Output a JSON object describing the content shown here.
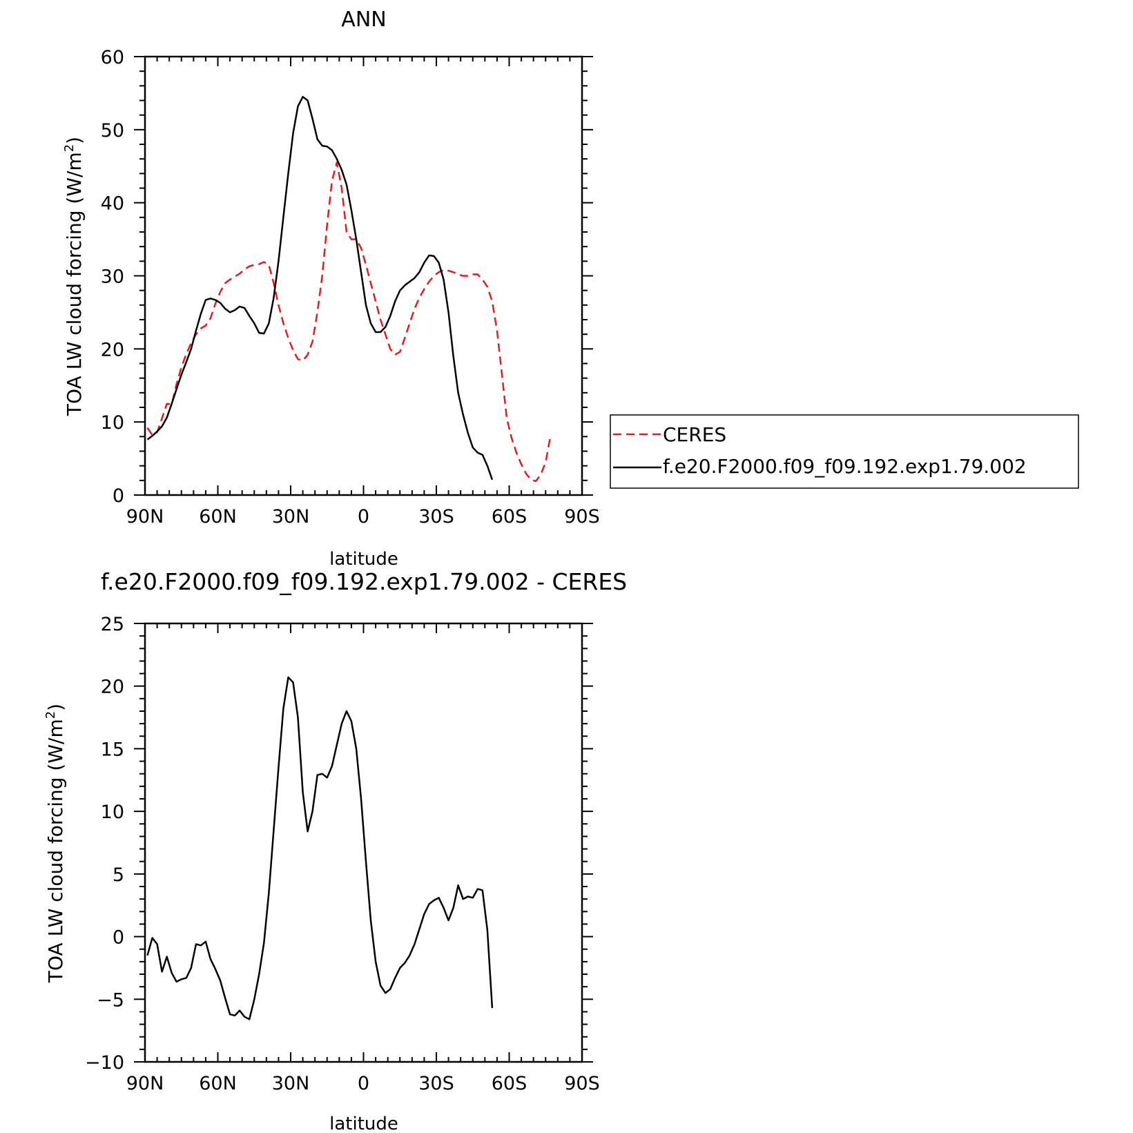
{
  "colors": {
    "ceres": "#e41a1c",
    "model": "#000000",
    "axis": "#000000"
  },
  "legend": {
    "placement": "right of top panel",
    "entries": [
      {
        "label": "CERES",
        "color": "#e41a1c",
        "style": "dashed"
      },
      {
        "label": "f.e20.F2000.f09_f09.192.exp1.79.002",
        "color": "#000000",
        "style": "solid"
      }
    ]
  },
  "chart_data": [
    {
      "type": "line",
      "title": "ANN",
      "xlabel": "latitude",
      "ylabel": "TOA LW cloud forcing (W/m²)",
      "ylabel_main": "TOA LW cloud forcing (W/m",
      "ylabel_sup": "2",
      "ylabel_end": ")",
      "xlim": [
        90,
        -90
      ],
      "ylim": [
        0,
        60
      ],
      "x_ticks": [
        90,
        60,
        30,
        0,
        -30,
        -60,
        -90
      ],
      "x_tick_labels": [
        "90N",
        "60N",
        "30N",
        "0",
        "30S",
        "60S",
        "90S"
      ],
      "y_ticks": [
        0,
        10,
        20,
        30,
        40,
        50,
        60
      ],
      "y_tick_labels": [
        "0",
        "10",
        "20",
        "30",
        "40",
        "50",
        "60"
      ],
      "grid": false,
      "series": [
        {
          "name": "CERES",
          "color": "#e41a1c",
          "style": "dashed",
          "points": [
            [
              89,
              9.2
            ],
            [
              87,
              8.2
            ],
            [
              85,
              8.6
            ],
            [
              83,
              10.5
            ],
            [
              81,
              12.5
            ],
            [
              79,
              12.4
            ],
            [
              77,
              15.2
            ],
            [
              75,
              17.5
            ],
            [
              73,
              19.3
            ],
            [
              71,
              20.8
            ],
            [
              69,
              22.0
            ],
            [
              67,
              22.8
            ],
            [
              65,
              23.2
            ],
            [
              63,
              24.2
            ],
            [
              61,
              26.2
            ],
            [
              59,
              27.8
            ],
            [
              57,
              29.0
            ],
            [
              55,
              29.5
            ],
            [
              53,
              29.9
            ],
            [
              51,
              30.3
            ],
            [
              49,
              30.9
            ],
            [
              47,
              31.3
            ],
            [
              45,
              31.5
            ],
            [
              43,
              31.6
            ],
            [
              41,
              31.9
            ],
            [
              39,
              31.5
            ],
            [
              37,
              29.0
            ],
            [
              35,
              26.0
            ],
            [
              33,
              23.5
            ],
            [
              31,
              21.5
            ],
            [
              29,
              19.8
            ],
            [
              27,
              18.6
            ],
            [
              25,
              18.4
            ],
            [
              23,
              19.2
            ],
            [
              21,
              21.0
            ],
            [
              19,
              25.0
            ],
            [
              17,
              30.0
            ],
            [
              15,
              37.0
            ],
            [
              13,
              43.0
            ],
            [
              11,
              45.5
            ],
            [
              9,
              42.0
            ],
            [
              7,
              36.0
            ],
            [
              5,
              35.0
            ],
            [
              3,
              35.0
            ],
            [
              1,
              33.8
            ],
            [
              -1,
              31.5
            ],
            [
              -3,
              29.0
            ],
            [
              -5,
              26.5
            ],
            [
              -7,
              24.0
            ],
            [
              -9,
              22.0
            ],
            [
              -11,
              20.0
            ],
            [
              -13,
              19.2
            ],
            [
              -15,
              19.6
            ],
            [
              -17,
              21.5
            ],
            [
              -19,
              23.5
            ],
            [
              -21,
              25.5
            ],
            [
              -23,
              27.0
            ],
            [
              -25,
              28.2
            ],
            [
              -27,
              29.2
            ],
            [
              -29,
              30.0
            ],
            [
              -31,
              30.5
            ],
            [
              -33,
              30.8
            ],
            [
              -35,
              30.7
            ],
            [
              -37,
              30.5
            ],
            [
              -39,
              30.2
            ],
            [
              -41,
              30.0
            ],
            [
              -43,
              30.0
            ],
            [
              -45,
              30.2
            ],
            [
              -47,
              30.2
            ],
            [
              -49,
              29.5
            ],
            [
              -51,
              28.5
            ],
            [
              -53,
              26.5
            ],
            [
              -55,
              22.5
            ],
            [
              -57,
              16.5
            ],
            [
              -59,
              10.5
            ],
            [
              -61,
              7.8
            ],
            [
              -63,
              5.8
            ],
            [
              -65,
              4.2
            ],
            [
              -67,
              2.9
            ],
            [
              -69,
              2.1
            ],
            [
              -71,
              1.9
            ],
            [
              -73,
              2.8
            ],
            [
              -75,
              4.5
            ],
            [
              -77,
              8.1
            ]
          ]
        },
        {
          "name": "f.e20.F2000.f09_f09.192.exp1.79.002",
          "color": "#000000",
          "style": "solid",
          "points": [
            [
              89,
              7.6
            ],
            [
              87,
              8.1
            ],
            [
              85,
              8.7
            ],
            [
              83,
              9.4
            ],
            [
              81,
              10.6
            ],
            [
              79,
              12.5
            ],
            [
              77,
              14.5
            ],
            [
              75,
              16.5
            ],
            [
              73,
              18.2
            ],
            [
              71,
              20.0
            ],
            [
              69,
              22.5
            ],
            [
              67,
              24.8
            ],
            [
              65,
              26.7
            ],
            [
              63,
              26.9
            ],
            [
              61,
              26.7
            ],
            [
              59,
              26.3
            ],
            [
              57,
              25.5
            ],
            [
              55,
              25.0
            ],
            [
              53,
              25.3
            ],
            [
              51,
              25.8
            ],
            [
              49,
              25.6
            ],
            [
              47,
              24.5
            ],
            [
              45,
              23.5
            ],
            [
              43,
              22.2
            ],
            [
              41,
              22.1
            ],
            [
              39,
              23.5
            ],
            [
              37,
              27.0
            ],
            [
              35,
              32.0
            ],
            [
              33,
              38.0
            ],
            [
              31,
              44.0
            ],
            [
              29,
              49.5
            ],
            [
              27,
              53.2
            ],
            [
              25,
              54.5
            ],
            [
              23,
              54.0
            ],
            [
              21,
              51.5
            ],
            [
              19,
              48.7
            ],
            [
              17,
              47.8
            ],
            [
              15,
              47.7
            ],
            [
              13,
              47.2
            ],
            [
              11,
              46.0
            ],
            [
              9,
              44.5
            ],
            [
              7,
              42.5
            ],
            [
              5,
              39.0
            ],
            [
              3,
              35.0
            ],
            [
              1,
              30.5
            ],
            [
              -1,
              26.0
            ],
            [
              -3,
              23.5
            ],
            [
              -5,
              22.3
            ],
            [
              -7,
              22.3
            ],
            [
              -9,
              23.0
            ],
            [
              -11,
              24.5
            ],
            [
              -13,
              26.5
            ],
            [
              -15,
              28.0
            ],
            [
              -17,
              28.7
            ],
            [
              -19,
              29.2
            ],
            [
              -21,
              29.7
            ],
            [
              -23,
              30.5
            ],
            [
              -25,
              31.8
            ],
            [
              -27,
              32.8
            ],
            [
              -29,
              32.7
            ],
            [
              -31,
              31.8
            ],
            [
              -33,
              29.5
            ],
            [
              -35,
              25.0
            ],
            [
              -37,
              19.0
            ],
            [
              -39,
              14.0
            ],
            [
              -41,
              11.0
            ],
            [
              -43,
              8.5
            ],
            [
              -45,
              6.5
            ],
            [
              -47,
              5.8
            ],
            [
              -49,
              5.5
            ],
            [
              -51,
              4.0
            ],
            [
              -53,
              2.1
            ]
          ]
        }
      ]
    },
    {
      "type": "line",
      "title": "f.e20.F2000.f09_f09.192.exp1.79.002 - CERES",
      "xlabel": "latitude",
      "ylabel": "TOA LW cloud forcing (W/m²)",
      "ylabel_main": "TOA LW cloud forcing (W/m",
      "ylabel_sup": "2",
      "ylabel_end": ")",
      "xlim": [
        90,
        -90
      ],
      "ylim": [
        -10,
        25
      ],
      "x_ticks": [
        90,
        60,
        30,
        0,
        -30,
        -60,
        -90
      ],
      "x_tick_labels": [
        "90N",
        "60N",
        "30N",
        "0",
        "30S",
        "60S",
        "90S"
      ],
      "y_ticks": [
        -10,
        -5,
        0,
        5,
        10,
        15,
        20,
        25
      ],
      "y_tick_labels": [
        "−10",
        "−5",
        "0",
        "5",
        "10",
        "15",
        "20",
        "25"
      ],
      "grid": false,
      "series": [
        {
          "color": "#000000",
          "style": "solid",
          "points": [
            [
              89,
              -1.5
            ],
            [
              87,
              -0.1
            ],
            [
              85,
              -0.6
            ],
            [
              83,
              -2.8
            ],
            [
              81,
              -1.6
            ],
            [
              79,
              -2.9
            ],
            [
              77,
              -3.6
            ],
            [
              75,
              -3.4
            ],
            [
              73,
              -3.3
            ],
            [
              71,
              -2.5
            ],
            [
              69,
              -0.6
            ],
            [
              67,
              -0.7
            ],
            [
              65,
              -0.4
            ],
            [
              63,
              -1.8
            ],
            [
              61,
              -2.6
            ],
            [
              59,
              -3.5
            ],
            [
              57,
              -4.9
            ],
            [
              55,
              -6.2
            ],
            [
              53,
              -6.3
            ],
            [
              51,
              -5.9
            ],
            [
              49,
              -6.4
            ],
            [
              47,
              -6.6
            ],
            [
              45,
              -5.0
            ],
            [
              43,
              -3.0
            ],
            [
              41,
              -0.5
            ],
            [
              39,
              3.5
            ],
            [
              37,
              8.5
            ],
            [
              35,
              13.5
            ],
            [
              33,
              18.2
            ],
            [
              31,
              20.7
            ],
            [
              29,
              20.3
            ],
            [
              27,
              17.5
            ],
            [
              25,
              11.5
            ],
            [
              23,
              8.4
            ],
            [
              21,
              10.0
            ],
            [
              19,
              12.9
            ],
            [
              17,
              13.0
            ],
            [
              15,
              12.7
            ],
            [
              13,
              13.6
            ],
            [
              11,
              15.3
            ],
            [
              9,
              17.0
            ],
            [
              7,
              18.0
            ],
            [
              5,
              17.2
            ],
            [
              3,
              15.0
            ],
            [
              1,
              11.0
            ],
            [
              -1,
              6.0
            ],
            [
              -3,
              1.3
            ],
            [
              -5,
              -2.0
            ],
            [
              -7,
              -3.9
            ],
            [
              -9,
              -4.5
            ],
            [
              -11,
              -4.2
            ],
            [
              -13,
              -3.3
            ],
            [
              -15,
              -2.5
            ],
            [
              -17,
              -2.1
            ],
            [
              -19,
              -1.5
            ],
            [
              -21,
              -0.6
            ],
            [
              -23,
              0.6
            ],
            [
              -25,
              1.8
            ],
            [
              -27,
              2.6
            ],
            [
              -29,
              2.9
            ],
            [
              -31,
              3.1
            ],
            [
              -33,
              2.3
            ],
            [
              -35,
              1.3
            ],
            [
              -37,
              2.3
            ],
            [
              -39,
              4.1
            ],
            [
              -41,
              3.0
            ],
            [
              -43,
              3.2
            ],
            [
              -45,
              3.1
            ],
            [
              -47,
              3.8
            ],
            [
              -49,
              3.7
            ],
            [
              -51,
              0.5
            ],
            [
              -53,
              -5.7
            ]
          ]
        }
      ]
    }
  ]
}
